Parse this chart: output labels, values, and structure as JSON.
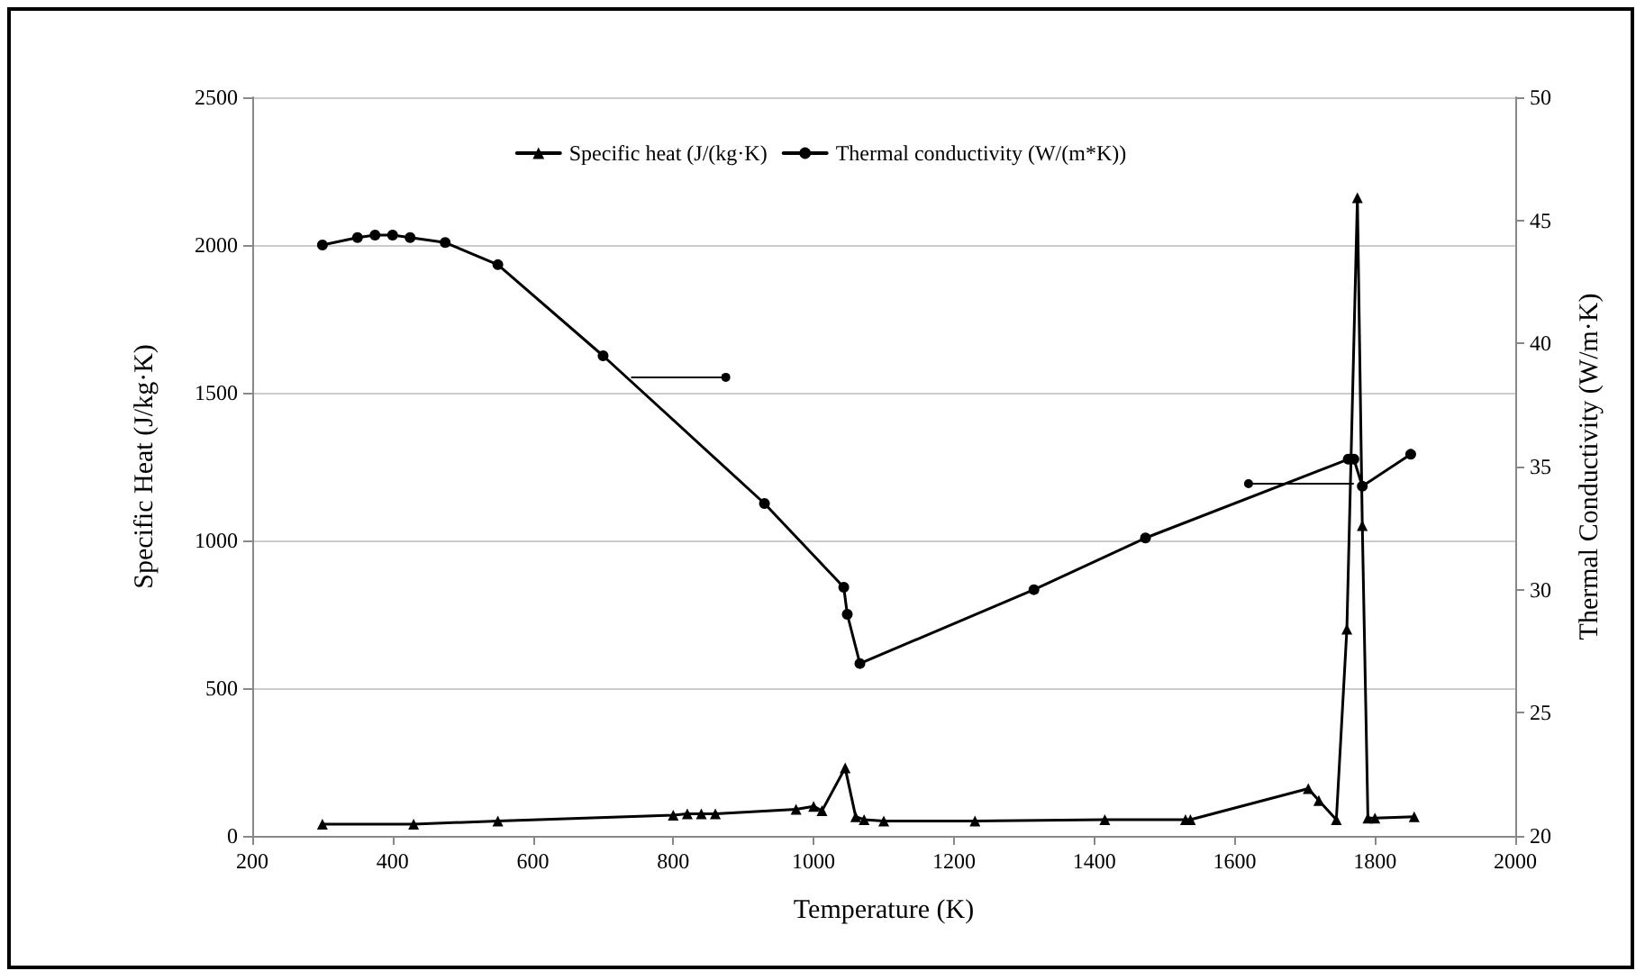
{
  "chart_data": {
    "type": "line",
    "xlabel": "Temperature (K)",
    "ylabel": "Specific Heat (J/kg·K)",
    "y2label": "Thermal Conductivity (W/m·K)",
    "xlim": [
      200,
      2000
    ],
    "xticks": [
      200,
      400,
      600,
      800,
      1000,
      1200,
      1400,
      1600,
      1800,
      2000
    ],
    "ylim": [
      0,
      2500
    ],
    "yticks": [
      0,
      500,
      1000,
      1500,
      2000,
      2500
    ],
    "y2lim": [
      20,
      50
    ],
    "y2ticks": [
      20,
      25,
      30,
      35,
      40,
      45,
      50
    ],
    "grid": "y",
    "legend": "top",
    "series": [
      {
        "name": "Specific heat (J/(kg·K)",
        "color": "#000000",
        "marker": "triangle",
        "x": [
          300,
          430,
          550,
          800,
          820,
          840,
          860,
          975,
          1000,
          1012,
          1045,
          1060,
          1072,
          1100,
          1230,
          1415,
          1530,
          1537,
          1705,
          1720,
          1745,
          1760,
          1775,
          1782,
          1790,
          1800,
          1856
        ],
        "values": [
          40,
          40,
          50,
          70,
          75,
          75,
          75,
          90,
          100,
          85,
          230,
          65,
          55,
          50,
          50,
          55,
          55,
          55,
          160,
          120,
          55,
          700,
          2160,
          1050,
          60,
          60,
          65
        ]
      },
      {
        "name": "Thermal conductivity (W/(m*K))",
        "color": "#000000",
        "marker": "circle",
        "axis": "y2",
        "x": [
          300,
          350,
          375,
          400,
          425,
          475,
          550,
          700,
          930,
          1043,
          1048,
          1066,
          1314,
          1473,
          1762,
          1770,
          1782,
          1851
        ],
        "values": [
          44.0,
          44.3,
          44.4,
          44.4,
          44.3,
          44.1,
          43.2,
          39.5,
          33.5,
          30.1,
          29.0,
          27.0,
          30.0,
          32.1,
          35.3,
          35.3,
          34.2,
          35.5
        ]
      }
    ]
  }
}
